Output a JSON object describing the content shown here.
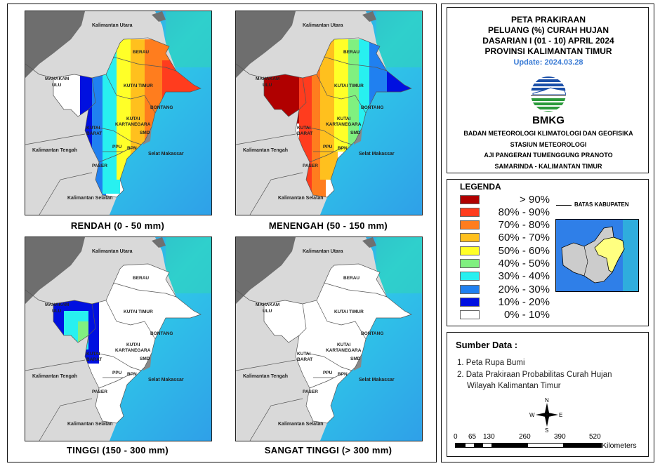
{
  "title": {
    "line1": "PETA PRAKIRAAN",
    "line2": "PELUANG (%) CURAH HUJAN",
    "line3": "DASARIAN I (01 - 10) APRIL 2024",
    "line4": "PROVINSI KALIMANTAN TIMUR",
    "update": "Update: 2024.03.28"
  },
  "logo": {
    "text": "BMKG"
  },
  "agency": {
    "line1": "BADAN METEOROLOGI KLIMATOLOGI DAN GEOFISIKA",
    "line2": "STASIUN METEOROLOGI",
    "line3": "AJI PANGERAN TUMENGGUNG PRANOTO",
    "line4": "SAMARINDA - KALIMANTAN TIMUR"
  },
  "legend": {
    "title": "LEGENDA",
    "boundary_label": "BATAS KABUPATEN",
    "items": [
      {
        "label": "> 90%",
        "color": "#b00000"
      },
      {
        "label": "80% - 90%",
        "color": "#ff3c1e"
      },
      {
        "label": "70% - 80%",
        "color": "#ff7d1e"
      },
      {
        "label": "60% - 70%",
        "color": "#ffc01e"
      },
      {
        "label": "50% - 60%",
        "color": "#ffff28"
      },
      {
        "label": "40% - 50%",
        "color": "#80f080"
      },
      {
        "label": "30% - 40%",
        "color": "#28f0f0"
      },
      {
        "label": "20% - 30%",
        "color": "#2080f0"
      },
      {
        "label": "10% - 20%",
        "color": "#0010e0"
      },
      {
        "label": "0% - 10%",
        "color": "#ffffff"
      }
    ]
  },
  "sources": {
    "title": "Sumber Data :",
    "item1": "1. Peta Rupa Bumi",
    "item2": "2. Data Prakiraan Probabilitas Curah Hujan",
    "item2b": "Wilayah Kalimantan Timur"
  },
  "compass": {
    "n": "N",
    "s": "S",
    "e": "E",
    "w": "W"
  },
  "scale": {
    "ticks": [
      "0",
      "65",
      "130",
      "260",
      "390",
      "520"
    ],
    "unit": "Kilometers"
  },
  "map_labels": {
    "kaltara": "Kalimantan Utara",
    "kalteng": "Kalimantan Tengah",
    "kalsel": "Kalimantan Selatan",
    "selat": "Selat Makassar",
    "berau": "BERAU",
    "kutim": "KUTAI TIMUR",
    "mahakam1": "MAHAKAM",
    "mahakam2": "ULU",
    "bontang": "BONTANG",
    "kukar1": "KUTAI",
    "kukar2": "KARTANEGARA",
    "kubar1": "KUTAI",
    "kubar2": "BARAT",
    "smd": "SMD",
    "ppu": "PPU",
    "bpn": "BPN",
    "paser": "PASER"
  },
  "panels": [
    {
      "caption": "RENDAH (0 - 50 mm)"
    },
    {
      "caption": "MENENGAH (50 - 150 mm)"
    },
    {
      "caption": "TINGGI (150 - 300 mm)"
    },
    {
      "caption": "SANGAT TINGGI (> 300 mm)"
    }
  ]
}
